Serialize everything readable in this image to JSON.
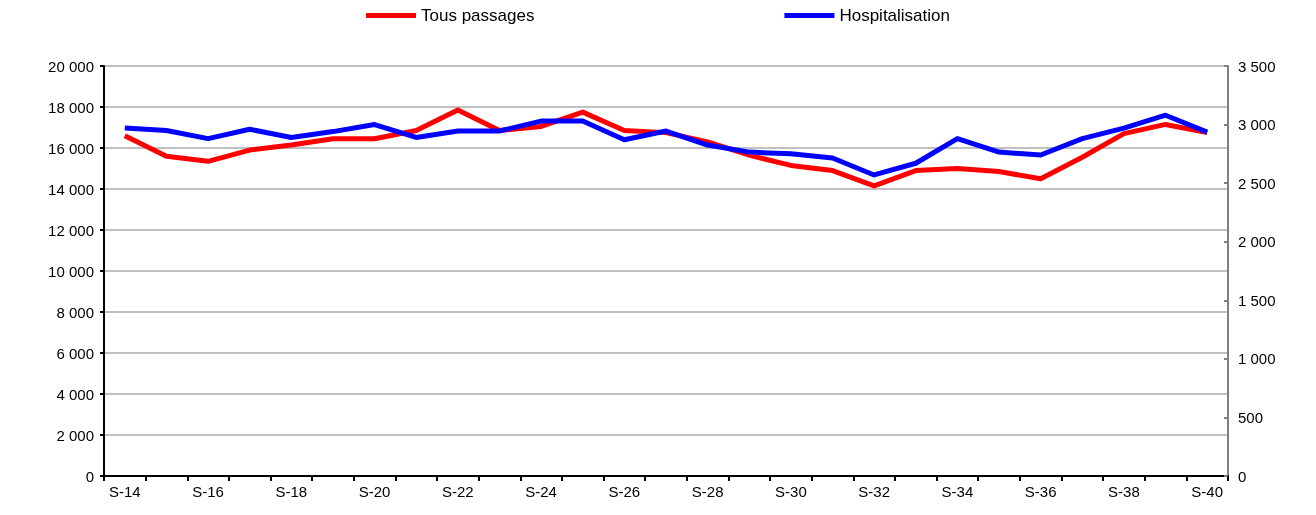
{
  "chart_data": {
    "type": "line",
    "categories": [
      "S-14",
      null,
      "S-16",
      null,
      "S-18",
      null,
      "S-20",
      null,
      "S-22",
      null,
      "S-24",
      null,
      "S-26",
      null,
      "S-28",
      null,
      "S-30",
      null,
      "S-32",
      null,
      "S-34",
      null,
      "S-36",
      null,
      "S-38",
      null,
      "S-40"
    ],
    "series": [
      {
        "name": "Tous passages",
        "color": "#ff0000",
        "values": [
          16600,
          15600,
          15350,
          15900,
          16150,
          16450,
          16450,
          16850,
          17850,
          16850,
          17050,
          17750,
          16850,
          16750,
          16300,
          15650,
          15150,
          14900,
          14150,
          14900,
          15000,
          14850,
          14500,
          15550,
          16700,
          17150,
          16750
        ]
      },
      {
        "name": "Hospitalisation",
        "color": "#0000ff",
        "axis": "y2",
        "values": [
          2970,
          2950,
          2880,
          2960,
          2890,
          2940,
          3000,
          2890,
          2945,
          2945,
          3030,
          3030,
          2870,
          2945,
          2825,
          2765,
          2750,
          2715,
          2570,
          2670,
          2880,
          2765,
          2740,
          2880,
          2970,
          3080,
          2935
        ]
      }
    ],
    "ylim": [
      0,
      20000
    ],
    "yticks": [
      {
        "value": 0,
        "label": "0"
      },
      {
        "value": 2000,
        "label": "2 000"
      },
      {
        "value": 4000,
        "label": "4 000"
      },
      {
        "value": 6000,
        "label": "6 000"
      },
      {
        "value": 8000,
        "label": "8 000"
      },
      {
        "value": 10000,
        "label": "10 000"
      },
      {
        "value": 12000,
        "label": "12 000"
      },
      {
        "value": 14000,
        "label": "14 000"
      },
      {
        "value": 16000,
        "label": "16 000"
      },
      {
        "value": 18000,
        "label": "18 000"
      },
      {
        "value": 20000,
        "label": "20 000"
      }
    ],
    "y2lim": [
      0,
      3500
    ],
    "y2ticks": [
      {
        "value": 0,
        "label": "0"
      },
      {
        "value": 500,
        "label": "500"
      },
      {
        "value": 1000,
        "label": "1 000"
      },
      {
        "value": 1500,
        "label": "1 500"
      },
      {
        "value": 2000,
        "label": "2 000"
      },
      {
        "value": 2500,
        "label": "2 500"
      },
      {
        "value": 3000,
        "label": "3 000"
      },
      {
        "value": 3500,
        "label": "3 500"
      }
    ],
    "grid": "y",
    "legend": "top",
    "marker": "none",
    "line_style": "solid"
  }
}
